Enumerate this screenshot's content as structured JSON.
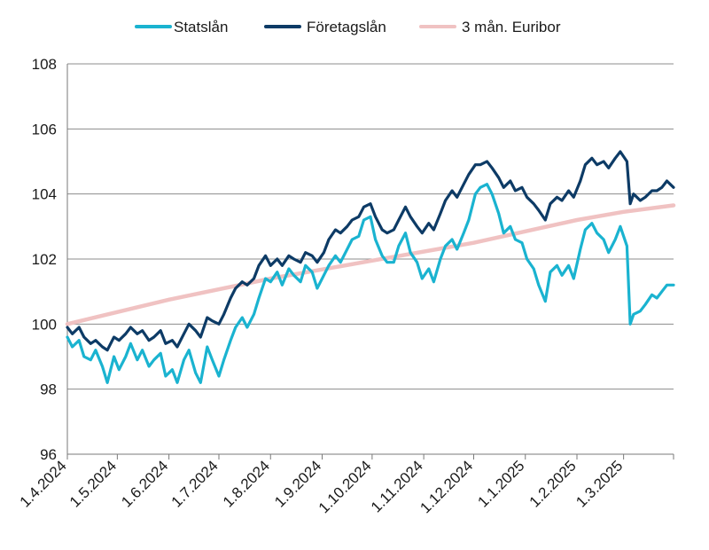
{
  "chart_data": {
    "type": "line",
    "title": "",
    "xlabel": "",
    "ylabel": "",
    "ylim": [
      96,
      108
    ],
    "yticks": [
      96,
      98,
      100,
      102,
      104,
      106,
      108
    ],
    "x_range": [
      "2024-04-01",
      "2025-03-31"
    ],
    "xtick_labels": [
      "1.4.2024",
      "1.5.2024",
      "1.6.2024",
      "1.7.2024",
      "1.8.2024",
      "1.9.2024",
      "1.10.2024",
      "1.11.2024",
      "1.12.2024",
      "1.1.2025",
      "1.2.2025",
      "1.3.2025"
    ],
    "xtick_dates": [
      "2024-04-01",
      "2024-05-01",
      "2024-06-01",
      "2024-07-01",
      "2024-08-01",
      "2024-09-01",
      "2024-10-01",
      "2024-11-01",
      "2024-12-01",
      "2025-01-01",
      "2025-02-01",
      "2025-03-01"
    ],
    "grid": "horizontal",
    "legend_position": "top",
    "series": [
      {
        "name": "Statslån",
        "color": "#1ab3d0",
        "points": [
          [
            "2024-04-01",
            99.6
          ],
          [
            "2024-04-04",
            99.3
          ],
          [
            "2024-04-08",
            99.5
          ],
          [
            "2024-04-11",
            99.0
          ],
          [
            "2024-04-15",
            98.9
          ],
          [
            "2024-04-18",
            99.2
          ],
          [
            "2024-04-22",
            98.7
          ],
          [
            "2024-04-25",
            98.2
          ],
          [
            "2024-04-29",
            99.0
          ],
          [
            "2024-05-02",
            98.6
          ],
          [
            "2024-05-06",
            99.0
          ],
          [
            "2024-05-09",
            99.4
          ],
          [
            "2024-05-13",
            98.9
          ],
          [
            "2024-05-16",
            99.2
          ],
          [
            "2024-05-20",
            98.7
          ],
          [
            "2024-05-23",
            98.9
          ],
          [
            "2024-05-27",
            99.1
          ],
          [
            "2024-05-30",
            98.4
          ],
          [
            "2024-06-03",
            98.6
          ],
          [
            "2024-06-06",
            98.2
          ],
          [
            "2024-06-10",
            98.9
          ],
          [
            "2024-06-13",
            99.2
          ],
          [
            "2024-06-17",
            98.5
          ],
          [
            "2024-06-20",
            98.2
          ],
          [
            "2024-06-24",
            99.3
          ],
          [
            "2024-06-27",
            98.9
          ],
          [
            "2024-07-01",
            98.4
          ],
          [
            "2024-07-04",
            98.9
          ],
          [
            "2024-07-08",
            99.5
          ],
          [
            "2024-07-11",
            99.9
          ],
          [
            "2024-07-15",
            100.2
          ],
          [
            "2024-07-18",
            99.9
          ],
          [
            "2024-07-22",
            100.3
          ],
          [
            "2024-07-25",
            100.8
          ],
          [
            "2024-07-29",
            101.4
          ],
          [
            "2024-08-01",
            101.3
          ],
          [
            "2024-08-05",
            101.6
          ],
          [
            "2024-08-08",
            101.2
          ],
          [
            "2024-08-12",
            101.7
          ],
          [
            "2024-08-15",
            101.5
          ],
          [
            "2024-08-19",
            101.3
          ],
          [
            "2024-08-22",
            101.8
          ],
          [
            "2024-08-26",
            101.6
          ],
          [
            "2024-08-29",
            101.1
          ],
          [
            "2024-09-02",
            101.5
          ],
          [
            "2024-09-05",
            101.8
          ],
          [
            "2024-09-09",
            102.1
          ],
          [
            "2024-09-12",
            101.9
          ],
          [
            "2024-09-16",
            102.3
          ],
          [
            "2024-09-19",
            102.6
          ],
          [
            "2024-09-23",
            102.7
          ],
          [
            "2024-09-26",
            103.2
          ],
          [
            "2024-09-30",
            103.3
          ],
          [
            "2024-10-03",
            102.6
          ],
          [
            "2024-10-07",
            102.1
          ],
          [
            "2024-10-10",
            101.9
          ],
          [
            "2024-10-14",
            101.9
          ],
          [
            "2024-10-17",
            102.4
          ],
          [
            "2024-10-21",
            102.8
          ],
          [
            "2024-10-24",
            102.2
          ],
          [
            "2024-10-28",
            101.9
          ],
          [
            "2024-10-31",
            101.4
          ],
          [
            "2024-11-04",
            101.7
          ],
          [
            "2024-11-07",
            101.3
          ],
          [
            "2024-11-11",
            102.0
          ],
          [
            "2024-11-14",
            102.4
          ],
          [
            "2024-11-18",
            102.6
          ],
          [
            "2024-11-21",
            102.3
          ],
          [
            "2024-11-25",
            102.8
          ],
          [
            "2024-11-28",
            103.2
          ],
          [
            "2024-12-02",
            104.0
          ],
          [
            "2024-12-05",
            104.2
          ],
          [
            "2024-12-09",
            104.3
          ],
          [
            "2024-12-12",
            104.0
          ],
          [
            "2024-12-16",
            103.4
          ],
          [
            "2024-12-19",
            102.8
          ],
          [
            "2024-12-23",
            103.0
          ],
          [
            "2024-12-26",
            102.6
          ],
          [
            "2024-12-30",
            102.5
          ],
          [
            "2025-01-02",
            102.0
          ],
          [
            "2025-01-06",
            101.7
          ],
          [
            "2025-01-09",
            101.2
          ],
          [
            "2025-01-13",
            100.7
          ],
          [
            "2025-01-16",
            101.6
          ],
          [
            "2025-01-20",
            101.8
          ],
          [
            "2025-01-23",
            101.5
          ],
          [
            "2025-01-27",
            101.8
          ],
          [
            "2025-01-30",
            101.4
          ],
          [
            "2025-02-03",
            102.3
          ],
          [
            "2025-02-06",
            102.9
          ],
          [
            "2025-02-10",
            103.1
          ],
          [
            "2025-02-13",
            102.8
          ],
          [
            "2025-02-17",
            102.6
          ],
          [
            "2025-02-20",
            102.2
          ],
          [
            "2025-02-24",
            102.6
          ],
          [
            "2025-02-27",
            103.0
          ],
          [
            "2025-03-03",
            102.4
          ],
          [
            "2025-03-05",
            100.0
          ],
          [
            "2025-03-07",
            100.3
          ],
          [
            "2025-03-11",
            100.4
          ],
          [
            "2025-03-14",
            100.6
          ],
          [
            "2025-03-18",
            100.9
          ],
          [
            "2025-03-21",
            100.8
          ],
          [
            "2025-03-24",
            101.0
          ],
          [
            "2025-03-27",
            101.2
          ],
          [
            "2025-03-31",
            101.2
          ]
        ]
      },
      {
        "name": "Företagslån",
        "color": "#0d3b66",
        "points": [
          [
            "2024-04-01",
            99.9
          ],
          [
            "2024-04-04",
            99.7
          ],
          [
            "2024-04-08",
            99.9
          ],
          [
            "2024-04-11",
            99.6
          ],
          [
            "2024-04-15",
            99.4
          ],
          [
            "2024-04-18",
            99.5
          ],
          [
            "2024-04-22",
            99.3
          ],
          [
            "2024-04-25",
            99.2
          ],
          [
            "2024-04-29",
            99.6
          ],
          [
            "2024-05-02",
            99.5
          ],
          [
            "2024-05-06",
            99.7
          ],
          [
            "2024-05-09",
            99.9
          ],
          [
            "2024-05-13",
            99.7
          ],
          [
            "2024-05-16",
            99.8
          ],
          [
            "2024-05-20",
            99.5
          ],
          [
            "2024-05-23",
            99.6
          ],
          [
            "2024-05-27",
            99.8
          ],
          [
            "2024-05-30",
            99.4
          ],
          [
            "2024-06-03",
            99.5
          ],
          [
            "2024-06-06",
            99.3
          ],
          [
            "2024-06-10",
            99.7
          ],
          [
            "2024-06-13",
            100.0
          ],
          [
            "2024-06-17",
            99.8
          ],
          [
            "2024-06-20",
            99.6
          ],
          [
            "2024-06-24",
            100.2
          ],
          [
            "2024-06-27",
            100.1
          ],
          [
            "2024-07-01",
            100.0
          ],
          [
            "2024-07-04",
            100.3
          ],
          [
            "2024-07-08",
            100.8
          ],
          [
            "2024-07-11",
            101.1
          ],
          [
            "2024-07-15",
            101.3
          ],
          [
            "2024-07-18",
            101.2
          ],
          [
            "2024-07-22",
            101.4
          ],
          [
            "2024-07-25",
            101.8
          ],
          [
            "2024-07-29",
            102.1
          ],
          [
            "2024-08-01",
            101.8
          ],
          [
            "2024-08-05",
            102.0
          ],
          [
            "2024-08-08",
            101.8
          ],
          [
            "2024-08-12",
            102.1
          ],
          [
            "2024-08-15",
            102.0
          ],
          [
            "2024-08-19",
            101.9
          ],
          [
            "2024-08-22",
            102.2
          ],
          [
            "2024-08-26",
            102.1
          ],
          [
            "2024-08-29",
            101.9
          ],
          [
            "2024-09-02",
            102.2
          ],
          [
            "2024-09-05",
            102.6
          ],
          [
            "2024-09-09",
            102.9
          ],
          [
            "2024-09-12",
            102.8
          ],
          [
            "2024-09-16",
            103.0
          ],
          [
            "2024-09-19",
            103.2
          ],
          [
            "2024-09-23",
            103.3
          ],
          [
            "2024-09-26",
            103.6
          ],
          [
            "2024-09-30",
            103.7
          ],
          [
            "2024-10-03",
            103.3
          ],
          [
            "2024-10-07",
            102.9
          ],
          [
            "2024-10-10",
            102.8
          ],
          [
            "2024-10-14",
            102.9
          ],
          [
            "2024-10-17",
            103.2
          ],
          [
            "2024-10-21",
            103.6
          ],
          [
            "2024-10-24",
            103.3
          ],
          [
            "2024-10-28",
            103.0
          ],
          [
            "2024-10-31",
            102.8
          ],
          [
            "2024-11-04",
            103.1
          ],
          [
            "2024-11-07",
            102.9
          ],
          [
            "2024-11-11",
            103.4
          ],
          [
            "2024-11-14",
            103.8
          ],
          [
            "2024-11-18",
            104.1
          ],
          [
            "2024-11-21",
            103.9
          ],
          [
            "2024-11-25",
            104.3
          ],
          [
            "2024-11-28",
            104.6
          ],
          [
            "2024-12-02",
            104.9
          ],
          [
            "2024-12-05",
            104.9
          ],
          [
            "2024-12-09",
            105.0
          ],
          [
            "2024-12-12",
            104.8
          ],
          [
            "2024-12-16",
            104.5
          ],
          [
            "2024-12-19",
            104.2
          ],
          [
            "2024-12-23",
            104.4
          ],
          [
            "2024-12-26",
            104.1
          ],
          [
            "2024-12-30",
            104.2
          ],
          [
            "2025-01-02",
            103.9
          ],
          [
            "2025-01-06",
            103.7
          ],
          [
            "2025-01-09",
            103.5
          ],
          [
            "2025-01-13",
            103.2
          ],
          [
            "2025-01-16",
            103.7
          ],
          [
            "2025-01-20",
            103.9
          ],
          [
            "2025-01-23",
            103.8
          ],
          [
            "2025-01-27",
            104.1
          ],
          [
            "2025-01-30",
            103.9
          ],
          [
            "2025-02-03",
            104.4
          ],
          [
            "2025-02-06",
            104.9
          ],
          [
            "2025-02-10",
            105.1
          ],
          [
            "2025-02-13",
            104.9
          ],
          [
            "2025-02-17",
            105.0
          ],
          [
            "2025-02-20",
            104.8
          ],
          [
            "2025-02-24",
            105.1
          ],
          [
            "2025-02-27",
            105.3
          ],
          [
            "2025-03-03",
            105.0
          ],
          [
            "2025-03-05",
            103.7
          ],
          [
            "2025-03-07",
            104.0
          ],
          [
            "2025-03-11",
            103.8
          ],
          [
            "2025-03-14",
            103.9
          ],
          [
            "2025-03-18",
            104.1
          ],
          [
            "2025-03-21",
            104.1
          ],
          [
            "2025-03-24",
            104.2
          ],
          [
            "2025-03-27",
            104.4
          ],
          [
            "2025-03-31",
            104.2
          ]
        ]
      },
      {
        "name": "3 mån. Euribor",
        "color": "#f0c2c2",
        "points": [
          [
            "2024-04-01",
            100.0
          ],
          [
            "2024-06-01",
            100.75
          ],
          [
            "2024-08-01",
            101.4
          ],
          [
            "2024-10-01",
            101.95
          ],
          [
            "2024-12-01",
            102.5
          ],
          [
            "2025-01-01",
            102.85
          ],
          [
            "2025-02-01",
            103.2
          ],
          [
            "2025-03-01",
            103.45
          ],
          [
            "2025-03-31",
            103.65
          ]
        ]
      }
    ]
  }
}
